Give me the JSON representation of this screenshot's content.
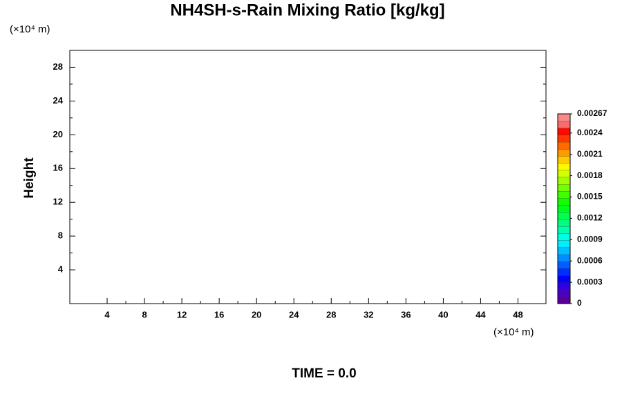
{
  "chart_data": {
    "type": "contour",
    "title": "NH4SH-s-Rain Mixing Ratio [kg/kg]",
    "x_unit": "(×10⁴ m)",
    "y_unit": "(×10⁴ m)",
    "ylabel": "Height",
    "footer": "TIME = 0.0",
    "xlim": [
      0,
      51
    ],
    "xticks": [
      4,
      8,
      12,
      16,
      20,
      24,
      28,
      32,
      36,
      40,
      44,
      48
    ],
    "ylim": [
      0,
      30
    ],
    "yticks": [
      4,
      8,
      12,
      16,
      20,
      24,
      28
    ],
    "colorbar": {
      "lim": [
        0,
        0.00267
      ],
      "ticks": [
        0,
        0.0003,
        0.0006,
        0.0009,
        0.0012,
        0.0015,
        0.0018,
        0.0021,
        0.0024,
        0.00267
      ]
    }
  }
}
